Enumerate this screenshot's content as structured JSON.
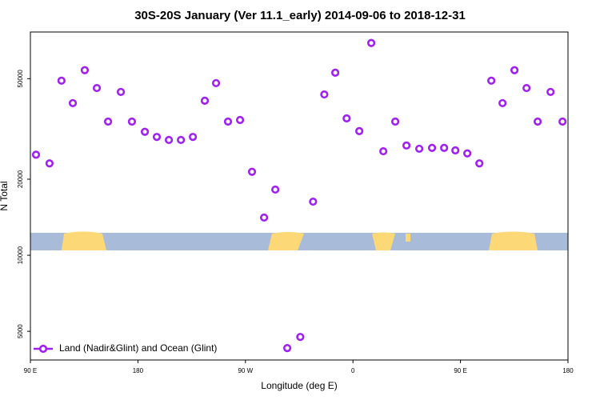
{
  "chart_data": {
    "type": "scatter",
    "title": "30S-20S January (Ver 11.1_early)   2014-09-06 to 2018-12-31",
    "x_label": "Longitude (deg E)",
    "y_label": "N Total",
    "yscale": "log",
    "xlim": [
      90,
      540
    ],
    "ylim": [
      3850,
      76500
    ],
    "xticks": [
      {
        "value": 90,
        "label": "90 E"
      },
      180,
      {
        "value": 270,
        "label": "90 W"
      },
      {
        "value": 360,
        "label": "0"
      },
      {
        "value": 450,
        "label": "90 E"
      },
      {
        "value": 540,
        "label": "180"
      }
    ],
    "yticks": [
      5000,
      10000,
      20000,
      50000
    ],
    "legend": "lower left",
    "series": [
      {
        "name": "Land (Nadir&Glint) and Ocean (Glint)",
        "color": "#a020f0",
        "x": [
          94.7,
          106,
          116,
          125.5,
          135.5,
          145.6,
          155,
          165.7,
          175,
          185.8,
          195.8,
          205.9,
          216,
          226,
          236,
          245.4,
          255.4,
          265.5,
          275.5,
          285.6,
          295,
          305,
          315.9,
          326.6,
          336,
          345.2,
          354.7,
          365.3,
          375.3,
          385.4,
          395.4,
          404.8,
          415.5,
          426.2,
          436.3,
          445.7,
          455.7,
          465.8,
          475.8,
          485.2,
          495.2,
          505.3,
          514.6,
          525.4,
          535.4
        ],
        "values": [
          25000,
          23100,
          49100,
          40000,
          54000,
          45900,
          33800,
          44300,
          33800,
          30800,
          29400,
          28600,
          28600,
          29400,
          40900,
          48000,
          33800,
          34300,
          21400,
          14100,
          18200,
          4290,
          4750,
          16300,
          43300,
          52800,
          34800,
          31000,
          69200,
          25800,
          33800,
          27200,
          26400,
          26600,
          26600,
          26000,
          25300,
          23100,
          49100,
          40000,
          54000,
          45900,
          33800,
          44300,
          33800
        ]
      }
    ]
  }
}
